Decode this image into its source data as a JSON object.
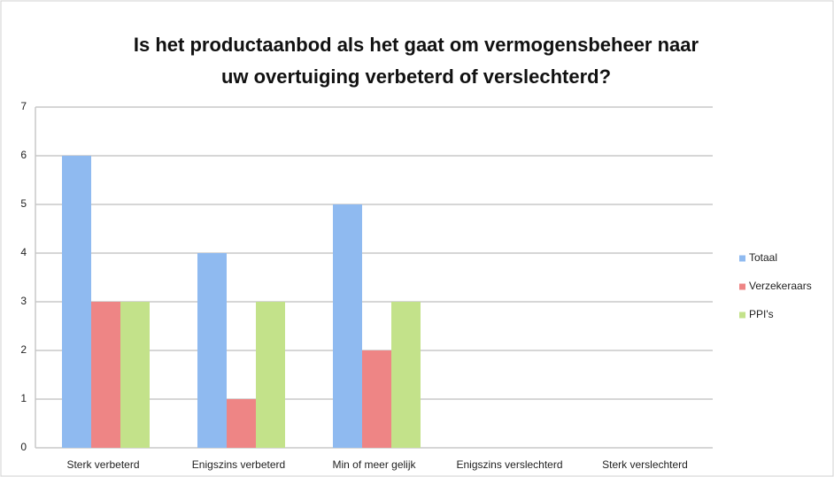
{
  "chart_data": {
    "type": "bar",
    "title": [
      "Is het productaanbod als het gaat om vermogensbeheer naar",
      "uw overtuiging verbeterd of verslechterd?"
    ],
    "categories": [
      "Sterk verbeterd",
      "Enigszins verbeterd",
      "Min of meer gelijk",
      "Enigszins verslechterd",
      "Sterk verslechterd"
    ],
    "series": [
      {
        "name": "Totaal",
        "color": "#8fbaf0",
        "values": [
          6,
          4,
          5,
          0,
          0
        ]
      },
      {
        "name": "Verzekeraars",
        "color": "#ee8585",
        "values": [
          3,
          1,
          2,
          0,
          0
        ]
      },
      {
        "name": "PPI's",
        "color": "#c3e28a",
        "values": [
          3,
          3,
          3,
          0,
          0
        ]
      }
    ],
    "ylim": [
      0,
      7
    ],
    "yticks": [
      0,
      1,
      2,
      3,
      4,
      5,
      6,
      7
    ],
    "grid": true,
    "legend": "right"
  }
}
